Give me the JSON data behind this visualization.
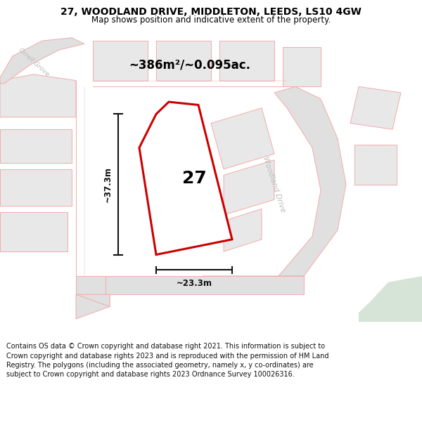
{
  "title": "27, WOODLAND DRIVE, MIDDLETON, LEEDS, LS10 4GW",
  "subtitle": "Map shows position and indicative extent of the property.",
  "area_label": "~386m²/~0.095ac.",
  "dim_width": "~23.3m",
  "dim_height": "~37.3m",
  "house_number": "27",
  "street_label": "Woodland Drive",
  "orrell_grove_label": "Orrell Grove",
  "footer": "Contains OS data © Crown copyright and database right 2021. This information is subject to Crown copyright and database rights 2023 and is reproduced with the permission of HM Land Registry. The polygons (including the associated geometry, namely x, y co-ordinates) are subject to Crown copyright and database rights 2023 Ordnance Survey 100026316.",
  "bg_color": "#ffffff",
  "map_bg": "#f2f2f2",
  "plot_outline_color": "#cc0000",
  "background_lines_color": "#f5aaaa",
  "dim_color": "#111111",
  "text_color": "#000000",
  "street_label_color": "#bbbbbb",
  "footer_color": "#111111",
  "green_patch_color": "#ccdece",
  "block_fill": "#e8e8e8",
  "road_fill": "#e0e0e0"
}
